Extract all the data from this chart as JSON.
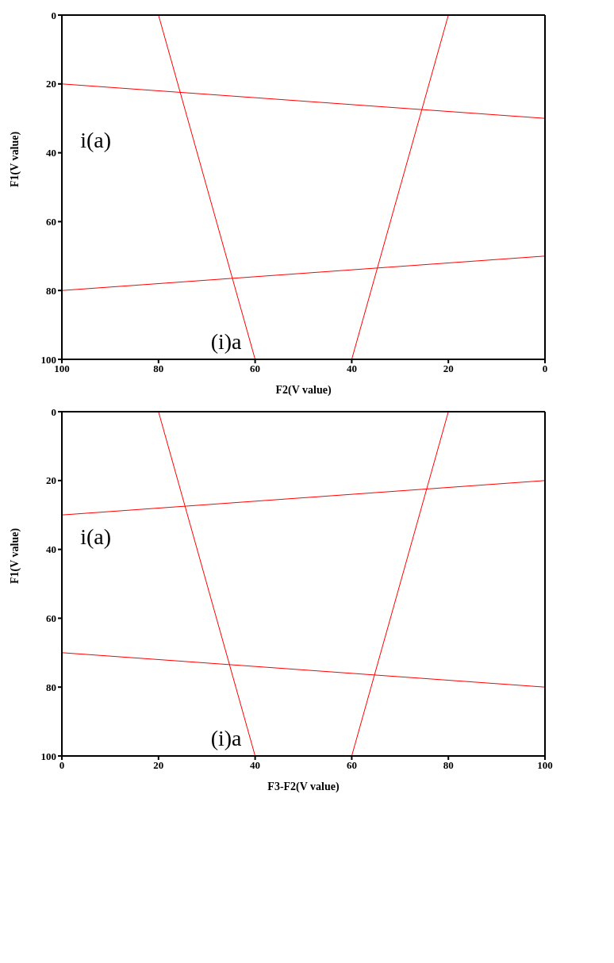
{
  "chart_data": [
    {
      "type": "line",
      "xlabel": "F2(V value)",
      "ylabel": "F1(V value)",
      "xlim": [
        100,
        0
      ],
      "ylim": [
        100,
        0
      ],
      "xticks": [
        100,
        80,
        60,
        40,
        20,
        0
      ],
      "yticks": [
        0,
        20,
        40,
        60,
        80,
        100
      ],
      "grid": false,
      "marker": "none",
      "line_style": "solid",
      "series": [
        {
          "color": "#ff0000",
          "x": [
            100,
            0
          ],
          "values": [
            20,
            30
          ]
        },
        {
          "color": "#ff0000",
          "x": [
            100,
            0
          ],
          "values": [
            80,
            70
          ]
        },
        {
          "color": "#ff0000",
          "x": [
            80,
            60
          ],
          "values": [
            0,
            100
          ]
        },
        {
          "color": "#ff0000",
          "x": [
            20,
            40
          ],
          "values": [
            0,
            100
          ]
        }
      ],
      "annotations": [
        "i(a)",
        "(i)a"
      ]
    },
    {
      "type": "line",
      "xlabel": "F3-F2(V value)",
      "ylabel": "F1(V value)",
      "xlim": [
        0,
        100
      ],
      "ylim": [
        100,
        0
      ],
      "xticks": [
        0,
        20,
        40,
        60,
        80,
        100
      ],
      "yticks": [
        0,
        20,
        40,
        60,
        80,
        100
      ],
      "grid": false,
      "marker": "none",
      "line_style": "solid",
      "series": [
        {
          "color": "#ff0000",
          "x": [
            0,
            100
          ],
          "values": [
            30,
            20
          ]
        },
        {
          "color": "#ff0000",
          "x": [
            0,
            100
          ],
          "values": [
            70,
            80
          ]
        },
        {
          "color": "#ff0000",
          "x": [
            20,
            40
          ],
          "values": [
            0,
            100
          ]
        },
        {
          "color": "#ff0000",
          "x": [
            80,
            60
          ],
          "values": [
            0,
            100
          ]
        }
      ],
      "annotations": [
        "i(a)",
        "(i)a"
      ]
    }
  ]
}
